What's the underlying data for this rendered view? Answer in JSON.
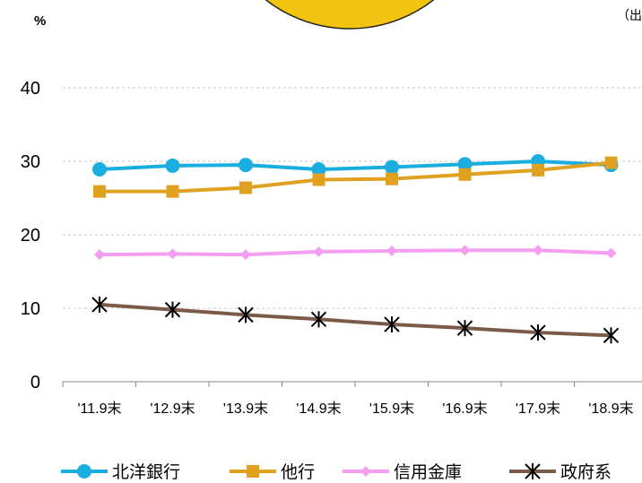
{
  "chart_data": {
    "type": "line",
    "unit_label": "%",
    "source_note": "（出",
    "categories": [
      "'11.9末",
      "'12.9末",
      "'13.9末",
      "'14.9末",
      "'15.9末",
      "'16.9末",
      "'17.9末",
      "'18.9末"
    ],
    "ylim": [
      0,
      40
    ],
    "yticks": [
      0,
      10,
      20,
      30,
      40
    ],
    "grid": true,
    "legend_position": "bottom",
    "series": [
      {
        "name": "北洋銀行",
        "color": "#1aaee0",
        "marker": "circle",
        "values": [
          28.9,
          29.4,
          29.5,
          28.9,
          29.2,
          29.6,
          30.0,
          29.5
        ]
      },
      {
        "name": "他行",
        "color": "#e0a020",
        "marker": "square",
        "values": [
          25.9,
          25.9,
          26.4,
          27.5,
          27.6,
          28.2,
          28.8,
          29.8
        ]
      },
      {
        "name": "信用金庫",
        "color": "#f39ef0",
        "marker": "diamond",
        "values": [
          17.3,
          17.4,
          17.3,
          17.7,
          17.8,
          17.9,
          17.9,
          17.5
        ]
      },
      {
        "name": "政府系",
        "color": "#7b5b48",
        "marker": "asterisk",
        "values": [
          10.5,
          9.8,
          9.1,
          8.5,
          7.8,
          7.3,
          6.7,
          6.3
        ]
      }
    ],
    "decoration_color": "#f2c40f"
  }
}
